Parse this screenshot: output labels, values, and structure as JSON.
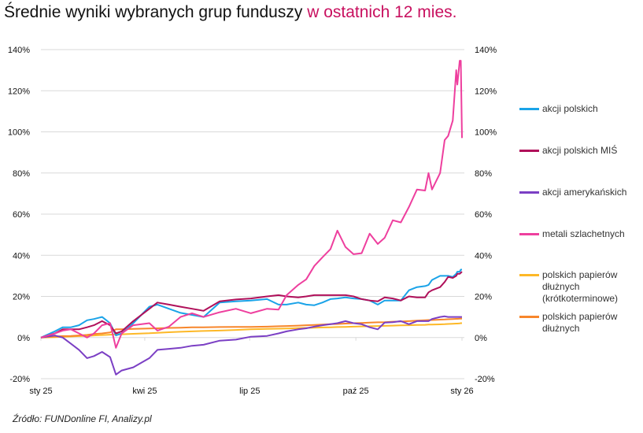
{
  "title": {
    "main": "Średnie wyniki wybranych grup funduszy",
    "highlight": "w ostatnich 12 mies."
  },
  "source": "Źródło: FUNDonline FI, Analizy.pl",
  "chart_data": {
    "type": "line",
    "title": "Średnie wyniki wybranych grup funduszy w ostatnich 12 mies.",
    "xlabel": "",
    "ylabel": "",
    "ylim": [
      -20,
      140
    ],
    "y_ticks": [
      "-20%",
      "0%",
      "20%",
      "40%",
      "60%",
      "80%",
      "100%",
      "120%",
      "140%"
    ],
    "y_tick_values": [
      -20,
      0,
      20,
      40,
      60,
      80,
      100,
      120,
      140
    ],
    "y_axis_both_sides": true,
    "x_range": [
      "2025-01-01",
      "2026-01-01"
    ],
    "x_ticks": [
      {
        "label": "sty 25",
        "date": "2025-01-01"
      },
      {
        "label": "kwi 25",
        "date": "2025-04-01"
      },
      {
        "label": "lip 25",
        "date": "2025-07-01"
      },
      {
        "label": "paź 25",
        "date": "2025-10-01"
      },
      {
        "label": "sty 26",
        "date": "2026-01-01"
      }
    ],
    "grid": true,
    "legend_position": "right",
    "x": [
      "2025-01-01",
      "2025-01-13",
      "2025-01-20",
      "2025-01-27",
      "2025-02-03",
      "2025-02-10",
      "2025-02-16",
      "2025-02-23",
      "2025-03-02",
      "2025-03-07",
      "2025-03-12",
      "2025-03-22",
      "2025-04-05",
      "2025-04-12",
      "2025-04-22",
      "2025-05-02",
      "2025-05-12",
      "2025-05-22",
      "2025-06-05",
      "2025-06-19",
      "2025-07-02",
      "2025-07-16",
      "2025-07-26",
      "2025-08-02",
      "2025-08-12",
      "2025-08-19",
      "2025-08-26",
      "2025-09-02",
      "2025-09-09",
      "2025-09-15",
      "2025-09-22",
      "2025-09-29",
      "2025-10-06",
      "2025-10-13",
      "2025-10-20",
      "2025-10-26",
      "2025-11-02",
      "2025-11-09",
      "2025-11-16",
      "2025-11-23",
      "2025-11-30",
      "2025-12-03",
      "2025-12-06",
      "2025-12-13",
      "2025-12-17",
      "2025-12-20",
      "2025-12-24",
      "2025-12-27",
      "2025-12-28",
      "2025-12-30",
      "2025-12-31",
      "2026-01-01"
    ],
    "series": [
      {
        "name": "akcji polskich",
        "color": "#1aa3e8",
        "values": [
          0,
          3,
          5,
          5,
          6,
          8.4,
          9,
          10,
          7,
          1,
          2,
          7,
          15,
          16,
          14,
          12,
          11,
          10,
          17,
          17.6,
          18,
          18.7,
          16,
          16,
          17,
          16,
          15.7,
          17,
          18.7,
          19,
          19.5,
          19,
          18.7,
          18,
          16,
          18,
          18,
          18,
          23,
          24.5,
          25,
          25.6,
          28,
          30,
          30,
          30,
          29.5,
          31,
          32,
          32,
          33,
          33
        ]
      },
      {
        "name": "akcji polskich MIŚ",
        "color": "#b0105a",
        "values": [
          0,
          2,
          4,
          4,
          4,
          5,
          6,
          8,
          6,
          2,
          3,
          8,
          14,
          17,
          16,
          15,
          14,
          13,
          17.6,
          18.5,
          19,
          20,
          20.6,
          20,
          19.5,
          20,
          20.6,
          20.6,
          20.6,
          20.6,
          20.6,
          20,
          18.7,
          18,
          17.6,
          19.5,
          19,
          18,
          20,
          19.5,
          19.5,
          22,
          23,
          24.5,
          27,
          29.5,
          29,
          30,
          31,
          31,
          31.5,
          32
        ]
      },
      {
        "name": "akcji amerykańskich",
        "color": "#7b3fc4",
        "values": [
          0,
          1,
          0,
          -3,
          -6,
          -10,
          -9,
          -7,
          -9.5,
          -18,
          -16,
          -14.5,
          -10,
          -6,
          -5.5,
          -5,
          -4,
          -3.5,
          -1.5,
          -1,
          0.4,
          0.8,
          2,
          3,
          4,
          4.5,
          5.3,
          6,
          6.5,
          7,
          8,
          7,
          6.5,
          5,
          4,
          7.3,
          7.5,
          8,
          6.5,
          8,
          8,
          8,
          9,
          10,
          10.3,
          10,
          10,
          10,
          10,
          10,
          10,
          10
        ]
      },
      {
        "name": "metali szlachetnych",
        "color": "#ee3f9e",
        "values": [
          0,
          2,
          3.4,
          4,
          2,
          0,
          2,
          6,
          7,
          -5,
          2,
          6,
          7,
          3.4,
          5.3,
          10,
          11.8,
          10,
          12.3,
          14,
          11.8,
          14,
          13.6,
          20.6,
          25.6,
          28.3,
          34.8,
          39,
          43,
          52,
          44,
          40.5,
          41,
          50.5,
          45.5,
          48.5,
          57,
          56,
          63.5,
          72,
          71.5,
          80,
          72,
          80,
          96,
          98,
          105.5,
          130,
          123,
          134.6,
          134.6,
          97
        ]
      },
      {
        "name": "polskich papierów dłużnych (krótkoterminowe)",
        "legend_lines": [
          "polskich papierów",
          "dłużnych",
          "(krótkoterminowe)"
        ],
        "color": "#fdb827",
        "values": [
          0,
          0.2,
          0.4,
          0.5,
          0.7,
          0.8,
          1,
          1.2,
          1.4,
          1.5,
          1.6,
          1.8,
          2.1,
          2.3,
          2.6,
          2.8,
          3,
          3.2,
          3.4,
          3.7,
          4,
          4.2,
          4.3,
          4.4,
          4.6,
          4.7,
          4.8,
          4.9,
          5,
          5.1,
          5.2,
          5.3,
          5.4,
          5.5,
          5.6,
          5.7,
          5.8,
          5.9,
          6,
          6.1,
          6.2,
          6.3,
          6.3,
          6.4,
          6.5,
          6.6,
          6.7,
          6.8,
          6.8,
          6.9,
          7,
          7
        ]
      },
      {
        "name": "polskich papierów dłużnych",
        "legend_lines": [
          "polskich papierów",
          "dłużnych"
        ],
        "color": "#f7862b",
        "values": [
          0,
          0.5,
          0.7,
          0.8,
          1,
          1.3,
          1.7,
          2,
          2.5,
          4,
          4,
          4.2,
          4.4,
          4.5,
          4.7,
          4.8,
          5,
          5,
          5.1,
          5.2,
          5.2,
          5.3,
          5.5,
          5.6,
          5.8,
          6,
          6.1,
          6.3,
          6.5,
          6.6,
          6.8,
          7,
          7.1,
          7.3,
          7.4,
          7.5,
          7.7,
          7.8,
          8,
          8.2,
          8.4,
          8.5,
          8.5,
          8.7,
          8.8,
          8.9,
          9,
          9.1,
          9.1,
          9.2,
          9.2,
          9.2
        ]
      }
    ]
  }
}
